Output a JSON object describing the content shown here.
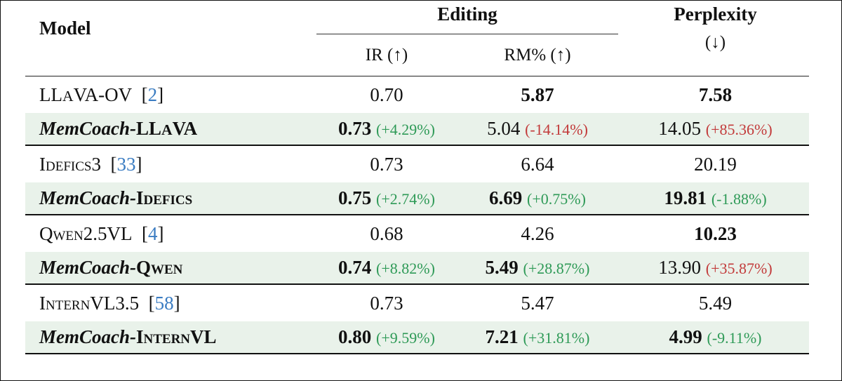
{
  "header": {
    "model": "Model",
    "editing": "Editing",
    "ir": "IR (↑)",
    "rm": "RM% (↑)",
    "perplexity": "Perplexity",
    "perplexity_arrow": "(↓)"
  },
  "colors": {
    "improve": "#2e9a57",
    "worse": "#c23a3a",
    "cite": "#3a7cc2",
    "highlight_row": "#e9f2ea"
  },
  "groups": [
    {
      "base": {
        "name": "LLaVA-OV",
        "cite": "2",
        "ir": "0.70",
        "rm": "5.87",
        "ppl": "7.58"
      },
      "ours": {
        "prefix": "MemCoach-",
        "name": "LLaVA",
        "ir": "0.73",
        "ir_delta": "(+4.29%)",
        "rm": "5.04",
        "rm_delta": "(-14.14%)",
        "ppl": "14.05",
        "ppl_delta": "(+85.36%)"
      }
    },
    {
      "base": {
        "name": "Idefics3",
        "cite": "33",
        "ir": "0.73",
        "rm": "6.64",
        "ppl": "20.19"
      },
      "ours": {
        "prefix": "MemCoach-",
        "name": "Idefics",
        "ir": "0.75",
        "ir_delta": "(+2.74%)",
        "rm": "6.69",
        "rm_delta": "(+0.75%)",
        "ppl": "19.81",
        "ppl_delta": "(-1.88%)"
      }
    },
    {
      "base": {
        "name": "Qwen2.5VL",
        "cite": "4",
        "ir": "0.68",
        "rm": "4.26",
        "ppl": "10.23"
      },
      "ours": {
        "prefix": "MemCoach-",
        "name": "Qwen",
        "ir": "0.74",
        "ir_delta": "(+8.82%)",
        "rm": "5.49",
        "rm_delta": "(+28.87%)",
        "ppl": "13.90",
        "ppl_delta": "(+35.87%)"
      }
    },
    {
      "base": {
        "name": "InternVL3.5",
        "cite": "58",
        "ir": "0.73",
        "rm": "5.47",
        "ppl": "5.49"
      },
      "ours": {
        "prefix": "MemCoach-",
        "name": "InternVL",
        "ir": "0.80",
        "ir_delta": "(+9.59%)",
        "rm": "7.21",
        "rm_delta": "(+31.81%)",
        "ppl": "4.99",
        "ppl_delta": "(-9.11%)"
      }
    }
  ]
}
